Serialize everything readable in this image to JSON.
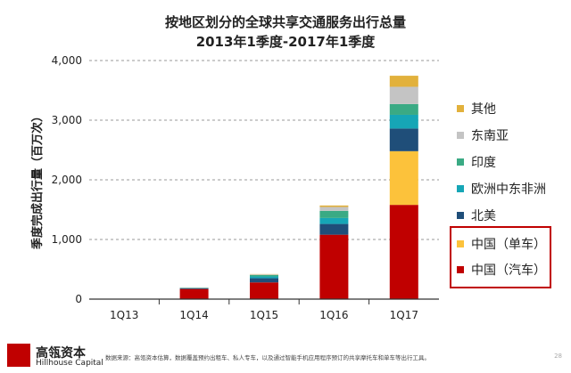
{
  "chart_data": {
    "type": "bar",
    "stacked": true,
    "title": "按地区划分的全球共享交通服务出行总量",
    "subtitle": "2013年1季度-2017年1季度",
    "xlabel": "",
    "ylabel": "季度完成出行量（百万次）",
    "ylim": [
      0,
      4000
    ],
    "yticks": [
      0,
      1000,
      2000,
      3000,
      4000
    ],
    "ytick_labels": [
      "0",
      "1,000",
      "2,000",
      "3,000",
      "4,000"
    ],
    "grid": true,
    "legend_position": "right",
    "categories": [
      "1Q13",
      "1Q14",
      "1Q15",
      "1Q16",
      "1Q17"
    ],
    "series": [
      {
        "name": "中国（汽车）",
        "color": "#c00000",
        "values": [
          5,
          170,
          280,
          1080,
          1580
        ]
      },
      {
        "name": "中国（单车）",
        "color": "#fcc23b",
        "values": [
          0,
          0,
          0,
          0,
          900
        ]
      },
      {
        "name": "北美",
        "color": "#1f4e79",
        "values": [
          1,
          12,
          70,
          180,
          380
        ]
      },
      {
        "name": "欧洲中东非洲",
        "color": "#16a6b6",
        "values": [
          0,
          5,
          30,
          100,
          230
        ]
      },
      {
        "name": "印度",
        "color": "#3aaa84",
        "values": [
          0,
          3,
          25,
          120,
          180
        ]
      },
      {
        "name": "东南亚",
        "color": "#c4c4c4",
        "values": [
          0,
          3,
          10,
          65,
          290
        ]
      },
      {
        "name": "其他",
        "color": "#e2b13c",
        "values": [
          0,
          2,
          5,
          25,
          185
        ]
      }
    ]
  },
  "legend_order": [
    6,
    5,
    4,
    3,
    2,
    1,
    0
  ],
  "footer": {
    "logo_cn": "高瓴资本",
    "logo_en": "Hillhouse Capital",
    "source": "数据来源：高瓴资本估算，数据覆盖预约出租车、私人专车，以及通过智能手机应用程序预订的共享摩托车和单车等出行工具。",
    "page": "28"
  }
}
